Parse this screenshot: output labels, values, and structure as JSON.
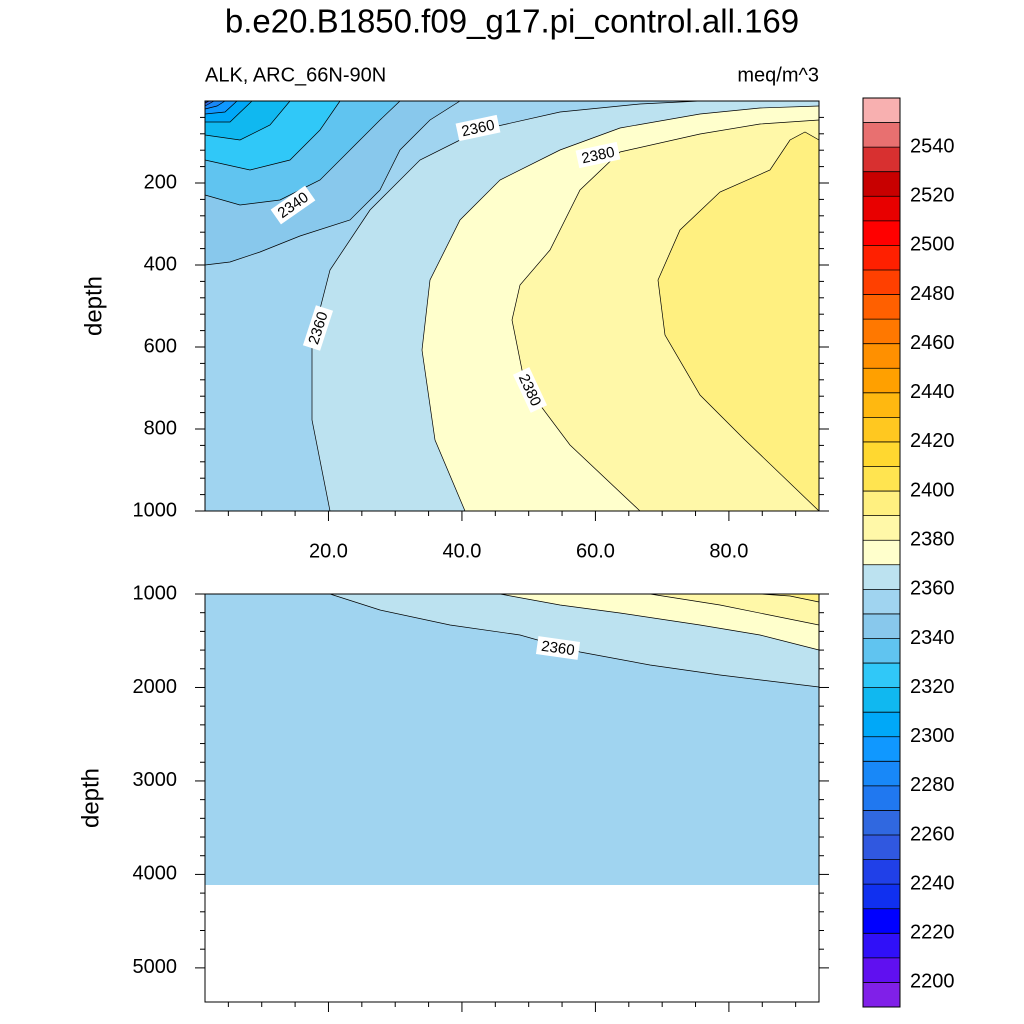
{
  "chart_data": [
    {
      "type": "contour",
      "title": "b.e20.B1850.f09_g17.pi_control.all.169",
      "subtitle_left": "ALK, ARC_66N-90N",
      "subtitle_right": "meq/m^3",
      "ylabel": "depth",
      "y_reversed": true,
      "xlim": [
        1.5,
        93.5
      ],
      "xticks": [
        {
          "value": 20,
          "label": "20.0"
        },
        {
          "value": 40,
          "label": "40.0"
        },
        {
          "value": 60,
          "label": "60.0"
        },
        {
          "value": 80,
          "label": "80.0"
        }
      ],
      "ylim": [
        0,
        1000
      ],
      "yticks": [
        200,
        400,
        600,
        800,
        1000
      ],
      "contour_labels": [
        2360,
        2380,
        2340,
        2360,
        2380
      ],
      "colorbar": {
        "levels": [
          2200,
          2210,
          2220,
          2230,
          2240,
          2250,
          2260,
          2270,
          2280,
          2290,
          2300,
          2310,
          2320,
          2330,
          2340,
          2350,
          2360,
          2370,
          2380,
          2390,
          2400,
          2410,
          2420,
          2430,
          2440,
          2450,
          2460,
          2470,
          2480,
          2490,
          2500,
          2510,
          2520,
          2530,
          2540,
          2550
        ],
        "colors": [
          "#8020e8",
          "#6010f0",
          "#3010f8",
          "#0000ff",
          "#1030f0",
          "#2040e8",
          "#3058e0",
          "#3068e0",
          "#2078f0",
          "#1888f8",
          "#1098ff",
          "#00a8f8",
          "#10b8f0",
          "#30c8f8",
          "#60c4f0",
          "#88c8ec",
          "#a0d4f0",
          "#bce2f0",
          "#ffffcc",
          "#fff8a8",
          "#fff080",
          "#ffe450",
          "#ffd830",
          "#ffc820",
          "#ffb810",
          "#ffa000",
          "#ff9000",
          "#ff7800",
          "#ff6000",
          "#ff4000",
          "#ff2000",
          "#ff0000",
          "#e80000",
          "#c80000",
          "#d83030",
          "#e87070",
          "#f8b0b0"
        ],
        "ticks": [
          2200,
          2220,
          2240,
          2260,
          2280,
          2300,
          2320,
          2340,
          2360,
          2380,
          2400,
          2420,
          2440,
          2460,
          2480,
          2500,
          2520,
          2540
        ]
      }
    },
    {
      "type": "contour",
      "ylabel": "depth",
      "y_reversed": true,
      "xlim": [
        1.5,
        93.5
      ],
      "ylim": [
        1000,
        5365
      ],
      "yticks": [
        1000,
        2000,
        3000,
        4000,
        5000
      ],
      "contour_labels": [
        2360
      ]
    }
  ]
}
